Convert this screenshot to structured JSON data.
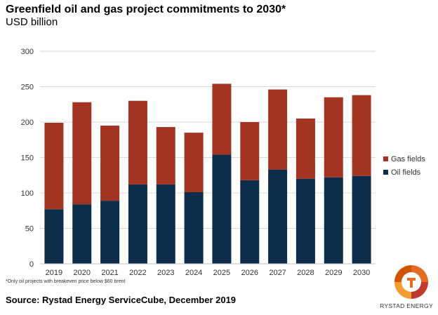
{
  "header": {
    "title": "Greenfield oil and gas project commitments to 2030*",
    "subtitle": "USD billion"
  },
  "footnote": "*Only oil projects with breakeven price below $60 brent",
  "source": "Source: Rystad Energy ServiceCube, December 2019",
  "brand": "RYSTAD ENERGY",
  "colors": {
    "oil": "#0c2d4a",
    "gas": "#a33422",
    "gridline": "#d9d9d9",
    "axis": "#bfbfbf"
  },
  "chart_data": {
    "type": "bar",
    "stacked": true,
    "title": "Greenfield oil and gas project commitments to 2030*",
    "ylabel": "USD billion",
    "xlabel": "",
    "ylim": [
      0,
      300
    ],
    "yticks": [
      0,
      50,
      100,
      150,
      200,
      250,
      300
    ],
    "categories": [
      "2019",
      "2020",
      "2021",
      "2022",
      "2023",
      "2024",
      "2025",
      "2026",
      "2027",
      "2028",
      "2029",
      "2030"
    ],
    "series": [
      {
        "name": "Oil fields",
        "color": "#0c2d4a",
        "values": [
          77,
          84,
          89,
          112,
          112,
          101,
          154,
          118,
          133,
          120,
          122,
          124
        ]
      },
      {
        "name": "Gas fields",
        "color": "#a33422",
        "values": [
          122,
          144,
          106,
          118,
          81,
          84,
          100,
          82,
          113,
          85,
          113,
          114
        ]
      }
    ],
    "legend": {
      "position": "right",
      "order": [
        "Gas fields",
        "Oil fields"
      ]
    },
    "grid": true
  }
}
